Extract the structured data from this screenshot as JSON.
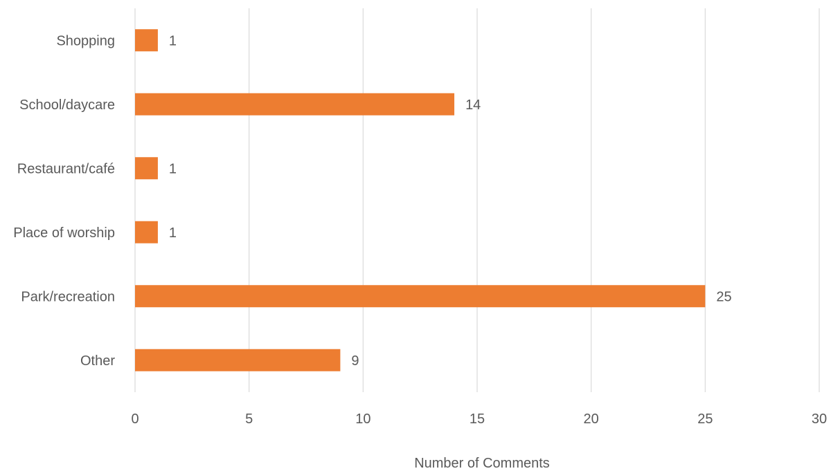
{
  "chart_data": {
    "type": "bar",
    "orientation": "horizontal",
    "categories": [
      "Shopping",
      "School/daycare",
      "Restaurant/café",
      "Place of worship",
      "Park/recreation",
      "Other"
    ],
    "values": [
      1,
      14,
      1,
      1,
      25,
      9
    ],
    "data_labels": [
      "1",
      "14",
      "1",
      "1",
      "25",
      "9"
    ],
    "xlabel": "Number of Comments",
    "ylabel": "",
    "xlim": [
      0,
      30
    ],
    "x_ticks": [
      0,
      5,
      10,
      15,
      20,
      25,
      30
    ],
    "x_tick_labels": [
      "0",
      "5",
      "10",
      "15",
      "20",
      "25",
      "30"
    ],
    "grid": "vertical",
    "legend": "none",
    "bar_color": "#ED7D31",
    "grid_color": "#D9D9D9",
    "text_color": "#595959"
  }
}
